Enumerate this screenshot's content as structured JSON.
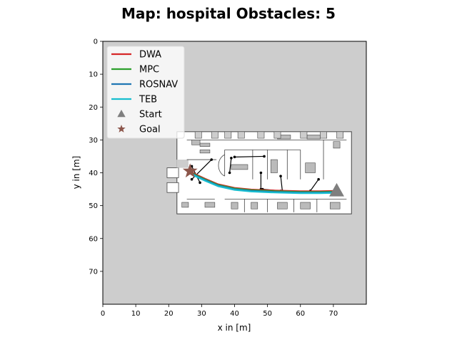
{
  "chart_data": {
    "type": "line",
    "title": "Map: hospital Obstacles: 5",
    "xlabel": "x in [m]",
    "ylabel": "y in [m]",
    "xlim": [
      0,
      80
    ],
    "ylim": [
      80,
      0
    ],
    "y_inverted": true,
    "xticks": [
      0,
      10,
      20,
      30,
      40,
      50,
      60,
      70
    ],
    "yticks": [
      0,
      10,
      20,
      30,
      40,
      50,
      60,
      70
    ],
    "grid": false,
    "legend_position": "top-left",
    "background_color": "#cdcdcd",
    "map": {
      "name": "hospital",
      "extent_x": [
        22.5,
        75.5
      ],
      "extent_y": [
        27.5,
        52.5
      ]
    },
    "series": [
      {
        "name": "DWA",
        "color": "#d62728",
        "x": [
          71,
          66,
          60,
          52,
          45,
          40,
          35,
          31,
          28,
          26.5
        ],
        "y": [
          45.5,
          45.6,
          45.6,
          45.4,
          45.1,
          44.6,
          43.5,
          41.8,
          40.4,
          39.4
        ]
      },
      {
        "name": "MPC",
        "color": "#2ca02c",
        "x": [
          71,
          66,
          60,
          52,
          45,
          40,
          35,
          31,
          28,
          26.5
        ],
        "y": [
          45.7,
          45.8,
          45.8,
          45.6,
          45.3,
          44.8,
          43.7,
          42,
          40.6,
          39.6
        ]
      },
      {
        "name": "ROSNAV",
        "color": "#1f77b4",
        "x": [
          71,
          66,
          60,
          52,
          45,
          40,
          35,
          31,
          28,
          26.5
        ],
        "y": [
          45.9,
          46,
          46,
          45.8,
          45.5,
          45,
          43.9,
          42.2,
          40.8,
          39.8
        ]
      },
      {
        "name": "TEB",
        "color": "#17becf",
        "x": [
          71,
          66,
          60,
          52,
          45,
          40,
          35,
          31,
          28,
          26.5
        ],
        "y": [
          46.1,
          46.2,
          46.2,
          46,
          45.7,
          45.2,
          44.1,
          42.4,
          41,
          40
        ]
      }
    ],
    "markers": [
      {
        "name": "Start",
        "shape": "triangle",
        "color": "#7f7f7f",
        "x": 71,
        "y": 45.5
      },
      {
        "name": "Goal",
        "shape": "star",
        "color": "#8c564b",
        "x": 26.5,
        "y": 39.5
      }
    ],
    "obstacles": [
      {
        "from": [
          49,
          35
        ],
        "to": [
          40,
          35.2
        ]
      },
      {
        "from": [
          39,
          35.5
        ],
        "to": [
          38.5,
          40
        ]
      },
      {
        "from": [
          27,
          38
        ],
        "to": [
          29.5,
          43
        ]
      },
      {
        "from": [
          33,
          36
        ],
        "to": [
          27,
          42
        ]
      },
      {
        "from": [
          48,
          40
        ],
        "to": [
          48,
          45
        ]
      },
      {
        "from": [
          48.5,
          45
        ],
        "to": [
          54,
          45.5
        ]
      },
      {
        "from": [
          54,
          41
        ],
        "to": [
          54.5,
          45.5
        ]
      },
      {
        "from": [
          65.5,
          42
        ],
        "to": [
          63,
          45.5
        ]
      }
    ]
  }
}
